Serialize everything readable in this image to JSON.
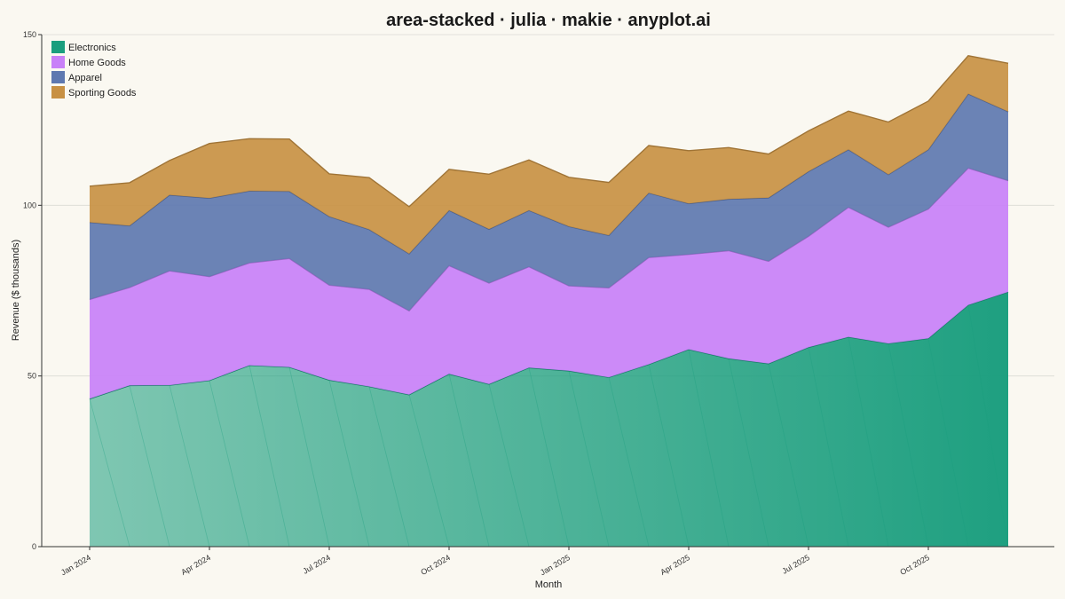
{
  "chart_data": {
    "type": "area",
    "stacked": true,
    "title": "area-stacked · julia · makie · anyplot.ai",
    "xlabel": "Month",
    "ylabel": "Revenue ($ thousands)",
    "ylim": [
      0,
      150
    ],
    "yticks": [
      0,
      50,
      100,
      150
    ],
    "grid": "horizontal",
    "legend_position": "top-left",
    "x": [
      "2024-01",
      "2024-02",
      "2024-03",
      "2024-04",
      "2024-05",
      "2024-06",
      "2024-07",
      "2024-08",
      "2024-09",
      "2024-10",
      "2024-11",
      "2024-12",
      "2025-01",
      "2025-02",
      "2025-03",
      "2025-04",
      "2025-05",
      "2025-06",
      "2025-07",
      "2025-08",
      "2025-09",
      "2025-10",
      "2025-11",
      "2025-12"
    ],
    "xtick_labels": [
      {
        "x": "2024-01",
        "label": "Jan 2024"
      },
      {
        "x": "2024-04",
        "label": "Apr 2024"
      },
      {
        "x": "2024-07",
        "label": "Jul 2024"
      },
      {
        "x": "2024-10",
        "label": "Oct 2024"
      },
      {
        "x": "2025-01",
        "label": "Jan 2025"
      },
      {
        "x": "2025-04",
        "label": "Apr 2025"
      },
      {
        "x": "2025-07",
        "label": "Jul 2025"
      },
      {
        "x": "2025-10",
        "label": "Oct 2025"
      }
    ],
    "series": [
      {
        "name": "Electronics",
        "color": "#1A9E7E",
        "values": [
          43.3,
          47.2,
          47.3,
          48.7,
          53.1,
          52.6,
          48.8,
          46.9,
          44.5,
          50.6,
          47.6,
          52.4,
          51.5,
          49.6,
          53.4,
          57.8,
          55.1,
          53.6,
          58.4,
          61.4,
          59.5,
          61.0,
          70.8,
          74.6
        ]
      },
      {
        "name": "Home Goods",
        "color": "#C880F8",
        "values": [
          29.1,
          28.7,
          33.5,
          30.4,
          30.0,
          31.8,
          27.8,
          28.5,
          24.6,
          31.7,
          29.6,
          29.6,
          24.9,
          26.2,
          31.3,
          27.8,
          31.6,
          30.0,
          32.5,
          38.0,
          34.1,
          37.9,
          40.1,
          32.6
        ]
      },
      {
        "name": "Apparel",
        "color": "#5E78B0",
        "values": [
          22.6,
          18.1,
          22.2,
          23.0,
          21.1,
          19.7,
          20.1,
          17.5,
          16.7,
          16.2,
          15.8,
          16.5,
          17.4,
          15.4,
          18.9,
          14.9,
          15.1,
          18.6,
          19.0,
          16.9,
          15.4,
          17.4,
          21.7,
          20.2
        ]
      },
      {
        "name": "Sporting Goods",
        "color": "#C89144",
        "values": [
          10.6,
          12.6,
          10.1,
          16.0,
          15.3,
          15.3,
          12.5,
          15.2,
          13.8,
          12.0,
          16.1,
          14.8,
          14.4,
          15.5,
          13.9,
          15.5,
          15.1,
          12.8,
          11.9,
          11.3,
          15.4,
          14.2,
          11.2,
          14.2
        ]
      }
    ]
  }
}
